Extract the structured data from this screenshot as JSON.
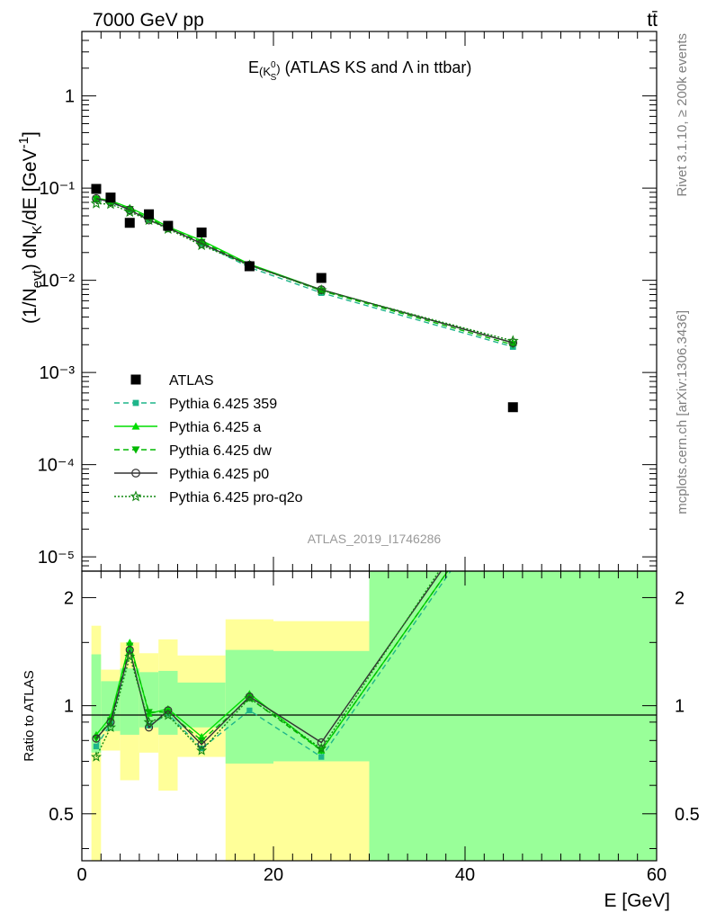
{
  "header": {
    "energy_label": "7000 GeV pp",
    "process_label": "tt̄"
  },
  "side": {
    "rivet": "Rivet 3.1.10, ≥ 200k events",
    "mcplots": "mcplots.cern.ch [arXiv:1306.3436]"
  },
  "analysis_id": "ATLAS_2019_I1746286",
  "chart_data": [
    {
      "type": "scatter",
      "panel": "main",
      "title": "E(K⁰S) (ATLAS KS and Λ in ttbar)",
      "ylabel": "(1/Nevt) dNK/dE [GeV⁻¹]",
      "xlabel": "",
      "xlim": [
        0,
        60
      ],
      "ylim": [
        7e-06,
        5
      ],
      "yscale": "log",
      "ytick_labels": [
        "10⁻⁵",
        "10⁻⁴",
        "10⁻³",
        "10⁻²",
        "10⁻¹",
        "1"
      ],
      "legend_position": "lower-left",
      "data": {
        "name": "ATLAS",
        "x": [
          1.5,
          3,
          5,
          7,
          9,
          12.5,
          17.5,
          25,
          45
        ],
        "y": [
          0.098,
          0.079,
          0.042,
          0.052,
          0.039,
          0.033,
          0.0142,
          0.0106,
          0.00042
        ]
      },
      "series": [
        {
          "name": "Pythia 6.425 359",
          "color": "#1fb58a",
          "dash": "6,4",
          "marker": "square",
          "x": [
            1.5,
            3,
            5,
            7,
            9,
            12.5,
            17.5,
            25,
            45
          ],
          "y": [
            0.075,
            0.07,
            0.058,
            0.046,
            0.037,
            0.025,
            0.0138,
            0.0073,
            0.0019
          ]
        },
        {
          "name": "Pythia 6.425 a",
          "color": "#00dd00",
          "dash": "",
          "marker": "triangle-up",
          "x": [
            1.5,
            3,
            5,
            7,
            9,
            12.5,
            17.5,
            25,
            45
          ],
          "y": [
            0.078,
            0.073,
            0.061,
            0.049,
            0.038,
            0.027,
            0.015,
            0.0079,
            0.0021
          ]
        },
        {
          "name": "Pythia 6.425 dw",
          "color": "#00b800",
          "dash": "6,4",
          "marker": "triangle-down",
          "x": [
            1.5,
            3,
            5,
            7,
            9,
            12.5,
            17.5,
            25,
            45
          ],
          "y": [
            0.076,
            0.071,
            0.059,
            0.047,
            0.037,
            0.026,
            0.0148,
            0.0077,
            0.002
          ]
        },
        {
          "name": "Pythia 6.425 p0",
          "color": "#333333",
          "dash": "",
          "marker": "circle-open",
          "x": [
            1.5,
            3,
            5,
            7,
            9,
            12.5,
            17.5,
            25,
            45
          ],
          "y": [
            0.077,
            0.071,
            0.058,
            0.045,
            0.037,
            0.025,
            0.0146,
            0.0079,
            0.0021
          ]
        },
        {
          "name": "Pythia 6.425 pro-q2o",
          "color": "#118811",
          "dash": "2,2",
          "marker": "star-open",
          "x": [
            1.5,
            3,
            5,
            7,
            9,
            12.5,
            17.5,
            25,
            45
          ],
          "y": [
            0.068,
            0.067,
            0.055,
            0.045,
            0.036,
            0.024,
            0.0145,
            0.0078,
            0.0022
          ]
        }
      ]
    },
    {
      "type": "line",
      "panel": "ratio",
      "ylabel": "Ratio to ATLAS",
      "xlabel": "E [GeV]",
      "xlim": [
        0,
        60
      ],
      "ylim": [
        0.37,
        2.37
      ],
      "yscale": "log",
      "xtick_labels": [
        "0",
        "20",
        "40",
        "60"
      ],
      "ytick_labels": [
        "0.5",
        "1",
        "2"
      ],
      "bands": [
        {
          "x": [
            1,
            2
          ],
          "inner": [
            0.74,
            1.39
          ],
          "outer": [
            0.35,
            1.67
          ]
        },
        {
          "x": [
            2,
            4
          ],
          "inner": [
            0.85,
            1.17
          ],
          "outer": [
            0.75,
            1.26
          ]
        },
        {
          "x": [
            4,
            6
          ],
          "inner": [
            0.83,
            1.27
          ],
          "outer": [
            0.62,
            1.5
          ]
        },
        {
          "x": [
            6,
            8
          ],
          "inner": [
            0.87,
            1.24
          ],
          "outer": [
            0.74,
            1.4
          ]
        },
        {
          "x": [
            8,
            10
          ],
          "inner": [
            0.83,
            1.25
          ],
          "outer": [
            0.58,
            1.53
          ]
        },
        {
          "x": [
            10,
            15
          ],
          "inner": [
            0.87,
            1.16
          ],
          "outer": [
            0.72,
            1.38
          ]
        },
        {
          "x": [
            15,
            20
          ],
          "inner": [
            0.69,
            1.43
          ],
          "outer": [
            0.35,
            1.74
          ]
        },
        {
          "x": [
            20,
            30
          ],
          "inner": [
            0.7,
            1.42
          ],
          "outer": [
            0.35,
            1.72
          ]
        },
        {
          "x": [
            30,
            60
          ],
          "inner": [
            0.35,
            2.4
          ],
          "outer": [
            0.35,
            2.4
          ]
        }
      ],
      "series": [
        {
          "name": "Pythia 6.425 359",
          "x": [
            1.5,
            3,
            5,
            7,
            9,
            12.5,
            17.5,
            25,
            38.5
          ],
          "y": [
            0.77,
            0.89,
            1.42,
            0.88,
            0.95,
            0.76,
            0.97,
            0.72,
            2.37
          ]
        },
        {
          "name": "Pythia 6.425 a",
          "x": [
            1.5,
            3,
            5,
            7,
            9,
            12.5,
            17.5,
            25,
            38.2
          ],
          "y": [
            0.83,
            0.93,
            1.5,
            0.95,
            0.98,
            0.82,
            1.08,
            0.75,
            2.37
          ]
        },
        {
          "name": "Pythia 6.425 dw",
          "x": [
            1.5,
            3,
            5,
            7,
            9,
            12.5,
            17.5,
            25,
            38.2
          ],
          "y": [
            0.81,
            0.91,
            1.47,
            0.96,
            0.96,
            0.8,
            1.05,
            0.75,
            2.37
          ]
        },
        {
          "name": "Pythia 6.425 p0",
          "x": [
            1.5,
            3,
            5,
            7,
            9,
            12.5,
            17.5,
            25,
            37.5
          ],
          "y": [
            0.81,
            0.9,
            1.43,
            0.87,
            0.97,
            0.78,
            1.06,
            0.79,
            2.37
          ]
        },
        {
          "name": "Pythia 6.425 pro-q2o",
          "x": [
            1.5,
            3,
            5,
            7,
            9,
            12.5,
            17.5,
            25,
            37.3
          ],
          "y": [
            0.72,
            0.87,
            1.37,
            0.9,
            0.94,
            0.75,
            1.05,
            0.76,
            2.37
          ]
        }
      ]
    }
  ]
}
